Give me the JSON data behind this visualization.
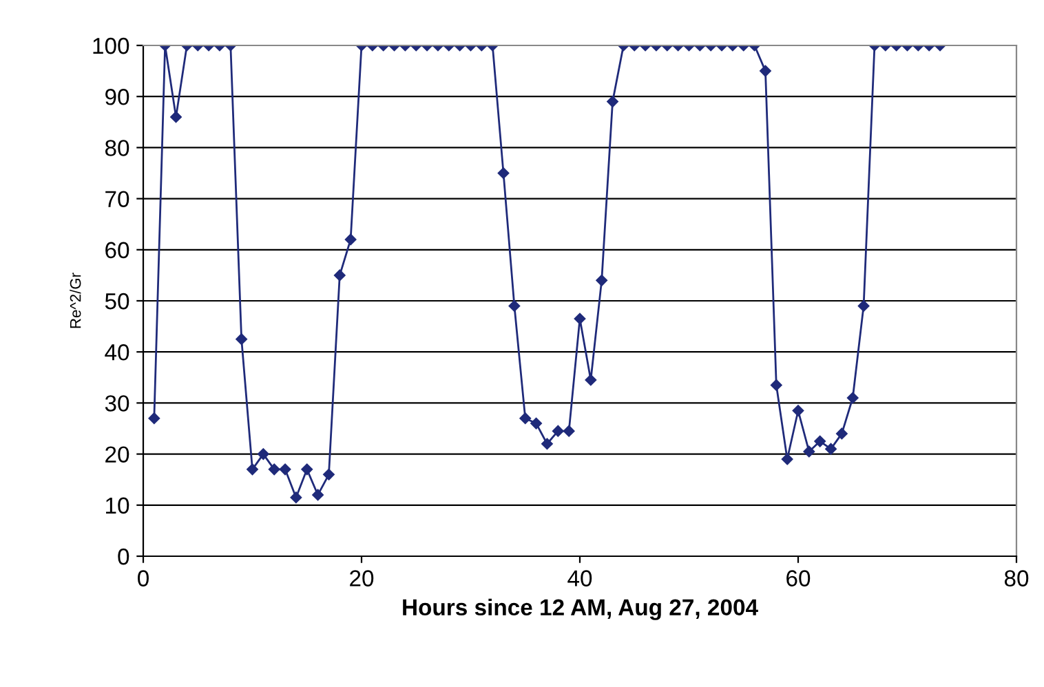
{
  "chart_data": {
    "type": "line",
    "xlabel": "Hours since 12 AM, Aug 27, 2004",
    "ylabel": "Re^2/Gr",
    "x": [
      1,
      2,
      3,
      4,
      5,
      6,
      7,
      8,
      9,
      10,
      11,
      12,
      13,
      14,
      15,
      16,
      17,
      18,
      19,
      20,
      21,
      22,
      23,
      24,
      25,
      26,
      27,
      28,
      29,
      30,
      31,
      32,
      33,
      34,
      35,
      36,
      37,
      38,
      39,
      40,
      41,
      42,
      43,
      44,
      45,
      46,
      47,
      48,
      49,
      50,
      51,
      52,
      53,
      54,
      55,
      56,
      57,
      58,
      59,
      60,
      61,
      62,
      63,
      64,
      65,
      66,
      67,
      68,
      69,
      70,
      71,
      72,
      73
    ],
    "series": [
      {
        "color": "#1f2a7a",
        "values": [
          27,
          100,
          86,
          100,
          100,
          100,
          100,
          100,
          42.5,
          17,
          20,
          17,
          17,
          11.5,
          17,
          12,
          16,
          55,
          62,
          100,
          100,
          100,
          100,
          100,
          100,
          100,
          100,
          100,
          100,
          100,
          100,
          100,
          75,
          49,
          27,
          26,
          22,
          24.5,
          24.5,
          46.5,
          34.5,
          54,
          89,
          100,
          100,
          100,
          100,
          100,
          100,
          100,
          100,
          100,
          100,
          100,
          100,
          100,
          95,
          33.5,
          19,
          28.5,
          20.5,
          22.5,
          21,
          24,
          31,
          49,
          100,
          100,
          100,
          100,
          100,
          100,
          100
        ]
      }
    ],
    "xlim": [
      0,
      80
    ],
    "xticks": [
      0,
      20,
      40,
      60,
      80
    ],
    "ylim": [
      0,
      100
    ],
    "yticks": [
      0,
      10,
      20,
      30,
      40,
      50,
      60,
      70,
      80,
      90,
      100
    ],
    "grid": "y",
    "marker": "diamond",
    "line_style": "solid",
    "legend": false
  }
}
